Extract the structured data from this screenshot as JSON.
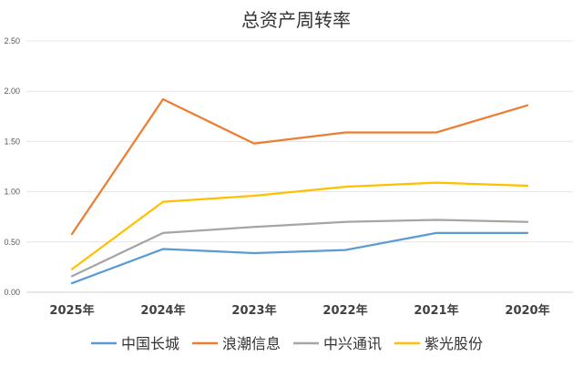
{
  "chart_data": {
    "type": "line",
    "title": "总资产周转率",
    "xlabel": "",
    "ylabel": "",
    "categories": [
      "2025年",
      "2024年",
      "2023年",
      "2022年",
      "2021年",
      "2020年"
    ],
    "ylim": [
      0,
      2.5
    ],
    "yticks": [
      "0.00",
      "0.50",
      "1.00",
      "1.50",
      "2.00",
      "2.50"
    ],
    "grid": true,
    "legend_position": "bottom",
    "series": [
      {
        "name": "中国长城",
        "color": "#5B9BD5",
        "values": [
          0.09,
          0.43,
          0.39,
          0.42,
          0.59,
          0.59
        ]
      },
      {
        "name": "浪潮信息",
        "color": "#ED7D31",
        "values": [
          0.58,
          1.92,
          1.48,
          1.59,
          1.59,
          1.86
        ]
      },
      {
        "name": "中兴通讯",
        "color": "#A5A5A5",
        "values": [
          0.16,
          0.59,
          0.65,
          0.7,
          0.72,
          0.7
        ]
      },
      {
        "name": "紫光股份",
        "color": "#FFC000",
        "values": [
          0.23,
          0.9,
          0.96,
          1.05,
          1.09,
          1.06
        ]
      }
    ]
  }
}
